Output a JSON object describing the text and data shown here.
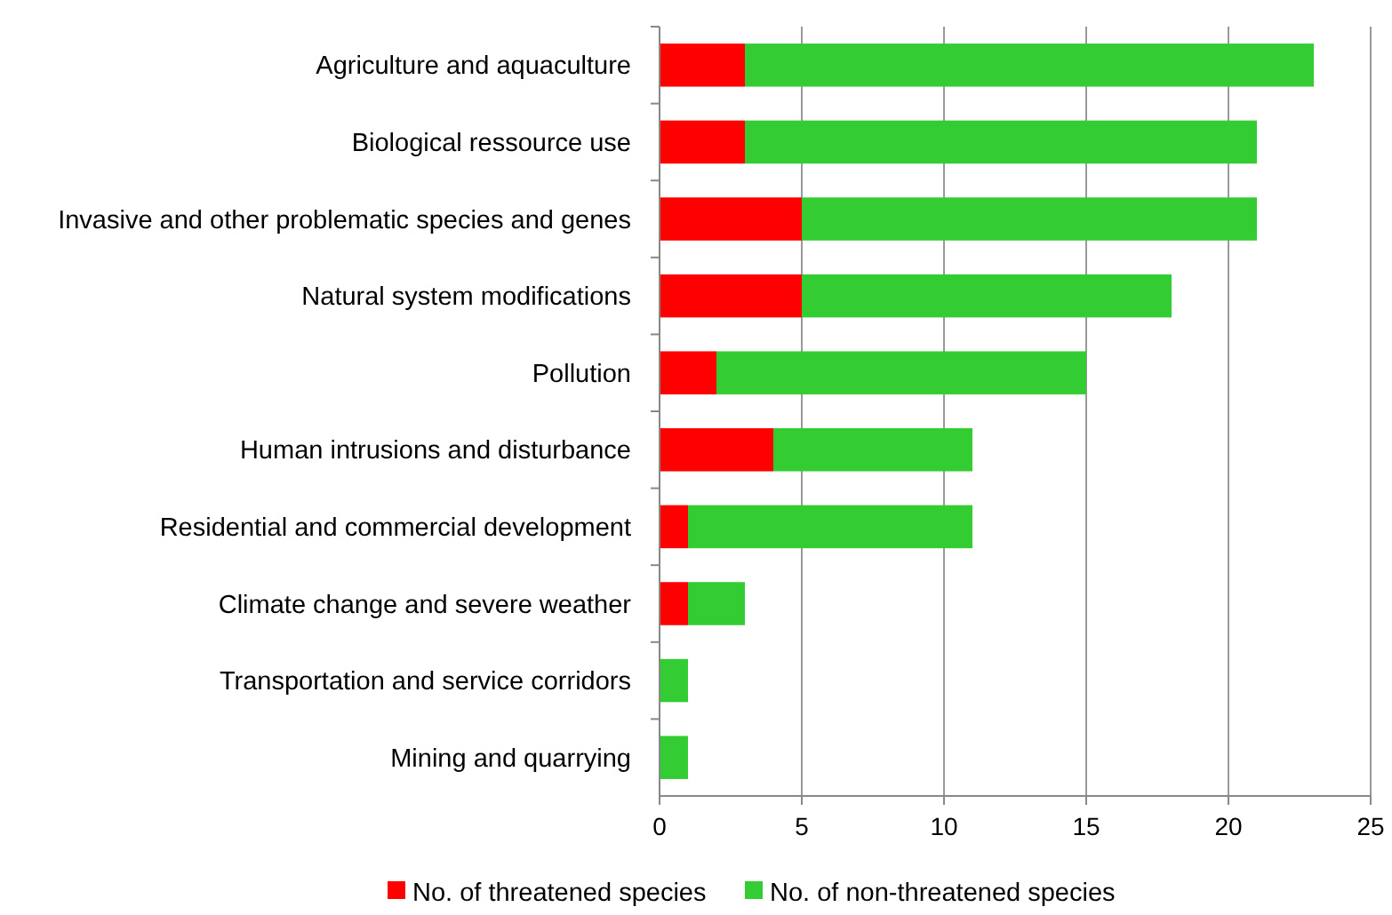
{
  "chart_data": {
    "type": "bar",
    "orientation": "horizontal",
    "stacked": true,
    "categories": [
      "Agriculture and aquaculture",
      "Biological ressource use",
      "Invasive and other problematic species and genes",
      "Natural system modifications",
      "Pollution",
      "Human intrusions and disturbance",
      "Residential and commercial development",
      "Climate change and severe weather",
      "Transportation and service corridors",
      "Mining and quarrying"
    ],
    "series": [
      {
        "name": "No. of threatened species",
        "color": "#ff0000",
        "values": [
          3,
          3,
          5,
          5,
          2,
          4,
          1,
          1,
          0,
          0
        ]
      },
      {
        "name": "No. of non-threatened species",
        "color": "#33cc33",
        "values": [
          20,
          18,
          16,
          13,
          13,
          7,
          10,
          2,
          1,
          1
        ]
      }
    ],
    "xlim": [
      0,
      25
    ],
    "xticks": [
      0,
      5,
      10,
      15,
      20,
      25
    ],
    "grid": "x",
    "legend": "bottom"
  }
}
